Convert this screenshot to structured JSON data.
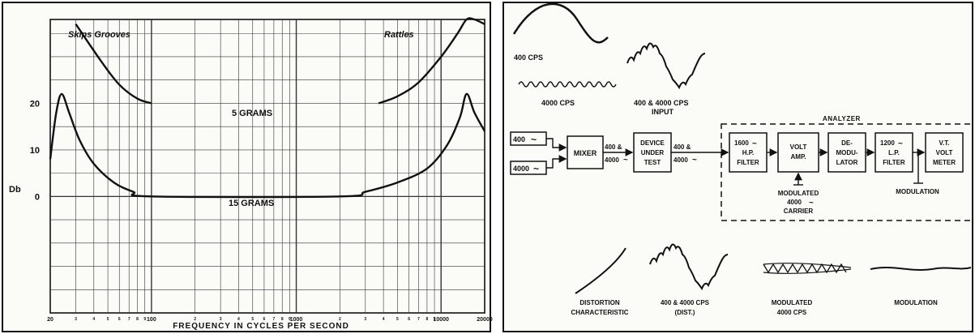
{
  "chart_data": {
    "type": "line",
    "xscale": "log",
    "xlim": [
      20,
      20000
    ],
    "ylim": [
      -25,
      38
    ],
    "xlabel": "FREQUENCY IN CYCLES PER SECOND",
    "ylabel": "Db",
    "x_tick_labels": [
      "20",
      "100",
      "1000",
      "10000",
      "20000"
    ],
    "x_ticks": [
      20,
      100,
      1000,
      10000,
      20000
    ],
    "y_tick_labels": [
      "20",
      "10",
      "0"
    ],
    "y_ticks": [
      20,
      10,
      0
    ],
    "grid": true,
    "series": [
      {
        "name": "5 GRAMS",
        "segments": [
          {
            "x": [
              30,
              45,
              60,
              80,
              100
            ],
            "y": [
              37,
              29,
              24,
              21,
              20
            ]
          },
          {
            "x": [
              3700,
              5000,
              7000,
              10000,
              13000,
              15000,
              17000,
              20000
            ],
            "y": [
              20,
              21.5,
              24.5,
              30,
              35,
              38,
              38,
              37
            ]
          }
        ]
      },
      {
        "name": "15 GRAMS",
        "x": [
          20,
          22,
          24,
          27,
          32,
          40,
          55,
          75,
          100,
          2000,
          3000,
          5000,
          8000,
          11000,
          13500,
          15000,
          17000,
          20000
        ],
        "y": [
          8,
          18,
          22,
          18,
          12,
          7,
          3,
          1,
          0,
          0,
          1,
          3,
          6,
          11,
          17,
          22,
          18,
          14
        ]
      }
    ],
    "annotations": [
      "Skips Grooves",
      "Rattles",
      "5 GRAMS",
      "15 GRAMS"
    ]
  },
  "diagram": {
    "waveform_labels": {
      "cps_400": "400 CPS",
      "cps_4000": "4000 CPS",
      "input_line1": "400 & 4000 CPS",
      "input_line2": "INPUT"
    },
    "sources": {
      "s400": "400",
      "s4000": "4000"
    },
    "wave_glyph": "~",
    "blocks": {
      "mixer": "MIXER",
      "device_line1": "DEVICE",
      "device_line2": "UNDER",
      "device_line3": "TEST",
      "hp_line1": "1600",
      "hp_line2": "H.P.",
      "hp_line3": "FILTER",
      "amp_line1": "VOLT",
      "amp_line2": "AMP.",
      "demod_line1": "DE-",
      "demod_line2": "MODU-",
      "demod_line3": "LATOR",
      "lp_line1": "1200",
      "lp_line2": "L.P.",
      "lp_line3": "FILTER",
      "vt_line1": "V.T.",
      "vt_line2": "VOLT",
      "vt_line3": "METER"
    },
    "links": {
      "a_line1": "400 &",
      "a_line2": "4000",
      "b_line1": "400 &",
      "b_line2": "4000"
    },
    "analyzer_label": "ANALYZER",
    "carrier_line1": "MODULATED",
    "carrier_line2": "4000",
    "carrier_line3": "CARRIER",
    "modulation_label": "MODULATION",
    "bottom": {
      "distortion_line1": "DISTORTION",
      "distortion_line2": "CHARACTERISTIC",
      "dist_line1": "400 & 4000 CPS",
      "dist_line2": "(DIST.)",
      "mod4000_line1": "MODULATED",
      "mod4000_line2": "4000 CPS",
      "modulation": "MODULATION"
    }
  }
}
